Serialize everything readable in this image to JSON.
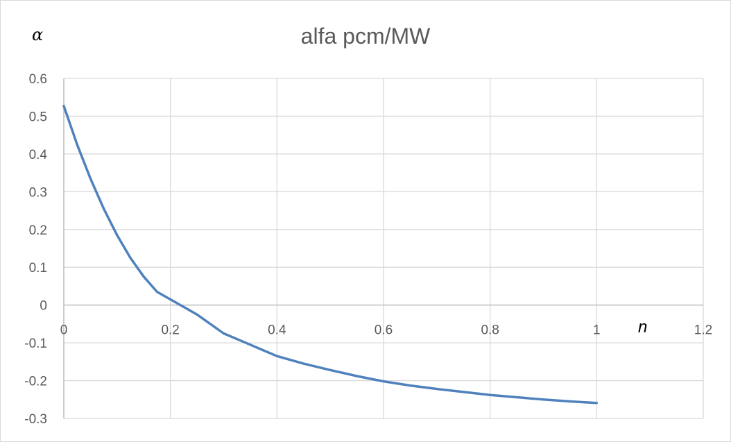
{
  "chart_data": {
    "type": "line",
    "title": "alfa pcm/MW",
    "xlabel": "n",
    "ylabel": "α",
    "xlim": [
      0,
      1.2
    ],
    "ylim": [
      -0.3,
      0.6
    ],
    "x_ticks": [
      "0",
      "0.2",
      "0.4",
      "0.6",
      "0.8",
      "1",
      "1.2"
    ],
    "y_ticks": [
      "0.6",
      "0.5",
      "0.4",
      "0.3",
      "0.2",
      "0.1",
      "0",
      "-0.1",
      "-0.2",
      "-0.3"
    ],
    "grid": true,
    "legend": "none",
    "series": [
      {
        "color": "#4f81bd",
        "x": [
          0,
          0.025,
          0.05,
          0.075,
          0.1,
          0.125,
          0.15,
          0.175,
          0.2,
          0.225,
          0.25,
          0.3,
          0.35,
          0.4,
          0.45,
          0.5,
          0.55,
          0.6,
          0.65,
          0.7,
          0.75,
          0.8,
          0.85,
          0.9,
          0.95,
          1.0
        ],
        "y": [
          0.527,
          0.425,
          0.335,
          0.255,
          0.185,
          0.125,
          0.075,
          0.035,
          0.015,
          -0.005,
          -0.025,
          -0.075,
          -0.105,
          -0.135,
          -0.155,
          -0.172,
          -0.188,
          -0.202,
          -0.213,
          -0.222,
          -0.23,
          -0.238,
          -0.244,
          -0.25,
          -0.255,
          -0.259
        ]
      }
    ]
  }
}
